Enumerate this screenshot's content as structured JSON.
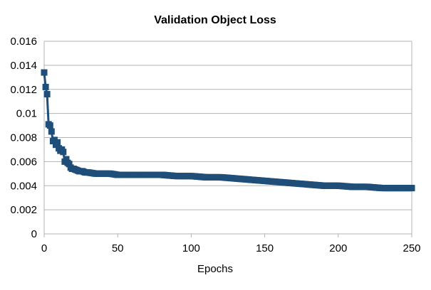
{
  "chart_data": {
    "type": "line",
    "title": "Validation Object Loss",
    "xlabel": "Epochs",
    "ylabel": "",
    "xlim": [
      0,
      250
    ],
    "ylim": [
      0,
      0.016
    ],
    "x_ticks": [
      "0",
      "50",
      "100",
      "150",
      "200",
      "250"
    ],
    "y_ticks": [
      "0",
      "0.002",
      "0.004",
      "0.006",
      "0.008",
      "0.01",
      "0.012",
      "0.014",
      "0.016"
    ],
    "grid": "horizontal",
    "legend": "none",
    "marker": "square",
    "color": "#1f4e79",
    "series": [
      {
        "x": [
          0,
          1,
          2,
          3,
          4,
          5,
          6,
          7,
          8,
          9,
          10,
          11,
          12,
          13,
          14,
          15,
          16,
          17,
          18,
          19,
          20,
          22,
          24,
          26,
          28,
          30,
          35,
          40,
          45,
          50,
          60,
          70,
          80,
          90,
          100,
          110,
          120,
          130,
          140,
          150,
          160,
          170,
          180,
          190,
          200,
          210,
          220,
          230,
          240,
          250
        ],
        "values": [
          0.0134,
          0.0122,
          0.0116,
          0.0091,
          0.009,
          0.0085,
          0.0077,
          0.0078,
          0.0074,
          0.0076,
          0.0071,
          0.0069,
          0.007,
          0.0068,
          0.006,
          0.0062,
          0.0059,
          0.0058,
          0.0055,
          0.0054,
          0.0054,
          0.0053,
          0.0052,
          0.0052,
          0.0051,
          0.0051,
          0.005,
          0.005,
          0.005,
          0.0049,
          0.0049,
          0.0049,
          0.0049,
          0.0048,
          0.0048,
          0.0047,
          0.0047,
          0.0046,
          0.0045,
          0.0044,
          0.0043,
          0.0042,
          0.0041,
          0.004,
          0.004,
          0.0039,
          0.0039,
          0.0038,
          0.0038,
          0.0038
        ]
      }
    ]
  }
}
